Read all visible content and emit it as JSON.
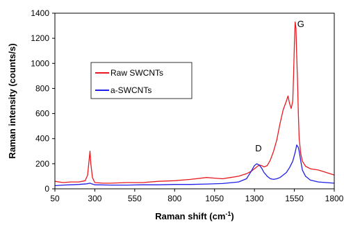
{
  "chart_data": {
    "type": "line",
    "title": "",
    "xlabel": "Raman shift (cm",
    "xlabel_sup": "-1",
    "xlabel_suffix": ")",
    "ylabel": "Raman intensity (counts/s)",
    "xlim": [
      50,
      1800
    ],
    "ylim": [
      0,
      1400
    ],
    "xticks": [
      50,
      300,
      550,
      800,
      1050,
      1300,
      1550,
      1800
    ],
    "yticks": [
      0,
      200,
      400,
      600,
      800,
      1000,
      1200,
      1400
    ],
    "grid": false,
    "legend_position": "upper-left",
    "series": [
      {
        "name": "Raw SWCNTs",
        "color": "#e8191e",
        "x": [
          50,
          100,
          150,
          200,
          240,
          255,
          265,
          270,
          275,
          285,
          300,
          350,
          400,
          500,
          600,
          700,
          800,
          900,
          1000,
          1050,
          1100,
          1150,
          1200,
          1250,
          1280,
          1300,
          1315,
          1330,
          1345,
          1360,
          1380,
          1400,
          1420,
          1440,
          1460,
          1480,
          1500,
          1510,
          1520,
          1530,
          1540,
          1545,
          1550,
          1555,
          1560,
          1565,
          1570,
          1575,
          1580,
          1590,
          1600,
          1620,
          1650,
          1700,
          1750,
          1800
        ],
        "y": [
          60,
          50,
          55,
          55,
          65,
          110,
          240,
          300,
          200,
          90,
          50,
          45,
          45,
          50,
          50,
          60,
          65,
          75,
          90,
          85,
          80,
          90,
          100,
          120,
          140,
          160,
          175,
          190,
          185,
          175,
          185,
          230,
          300,
          390,
          520,
          630,
          700,
          740,
          680,
          640,
          700,
          900,
          1150,
          1330,
          1280,
          1050,
          850,
          600,
          400,
          280,
          220,
          180,
          160,
          150,
          130,
          110
        ]
      },
      {
        "name": "a-SWCNTs",
        "color": "#1e1ee8",
        "x": [
          50,
          100,
          150,
          200,
          250,
          270,
          280,
          300,
          400,
          500,
          600,
          700,
          800,
          900,
          1000,
          1100,
          1200,
          1250,
          1280,
          1300,
          1315,
          1330,
          1345,
          1360,
          1380,
          1400,
          1420,
          1440,
          1460,
          1480,
          1500,
          1520,
          1540,
          1555,
          1565,
          1575,
          1580,
          1590,
          1600,
          1620,
          1650,
          1700,
          1750,
          1800
        ],
        "y": [
          25,
          30,
          32,
          35,
          40,
          45,
          40,
          32,
          30,
          30,
          32,
          32,
          35,
          35,
          38,
          42,
          55,
          80,
          140,
          185,
          200,
          190,
          165,
          130,
          100,
          80,
          75,
          80,
          90,
          110,
          130,
          170,
          220,
          290,
          350,
          330,
          300,
          220,
          150,
          100,
          70,
          55,
          50,
          45
        ]
      }
    ],
    "annotations": [
      {
        "text": "D",
        "x": 1325,
        "y": 300
      },
      {
        "text": "G",
        "x": 1590,
        "y": 1290
      }
    ]
  }
}
